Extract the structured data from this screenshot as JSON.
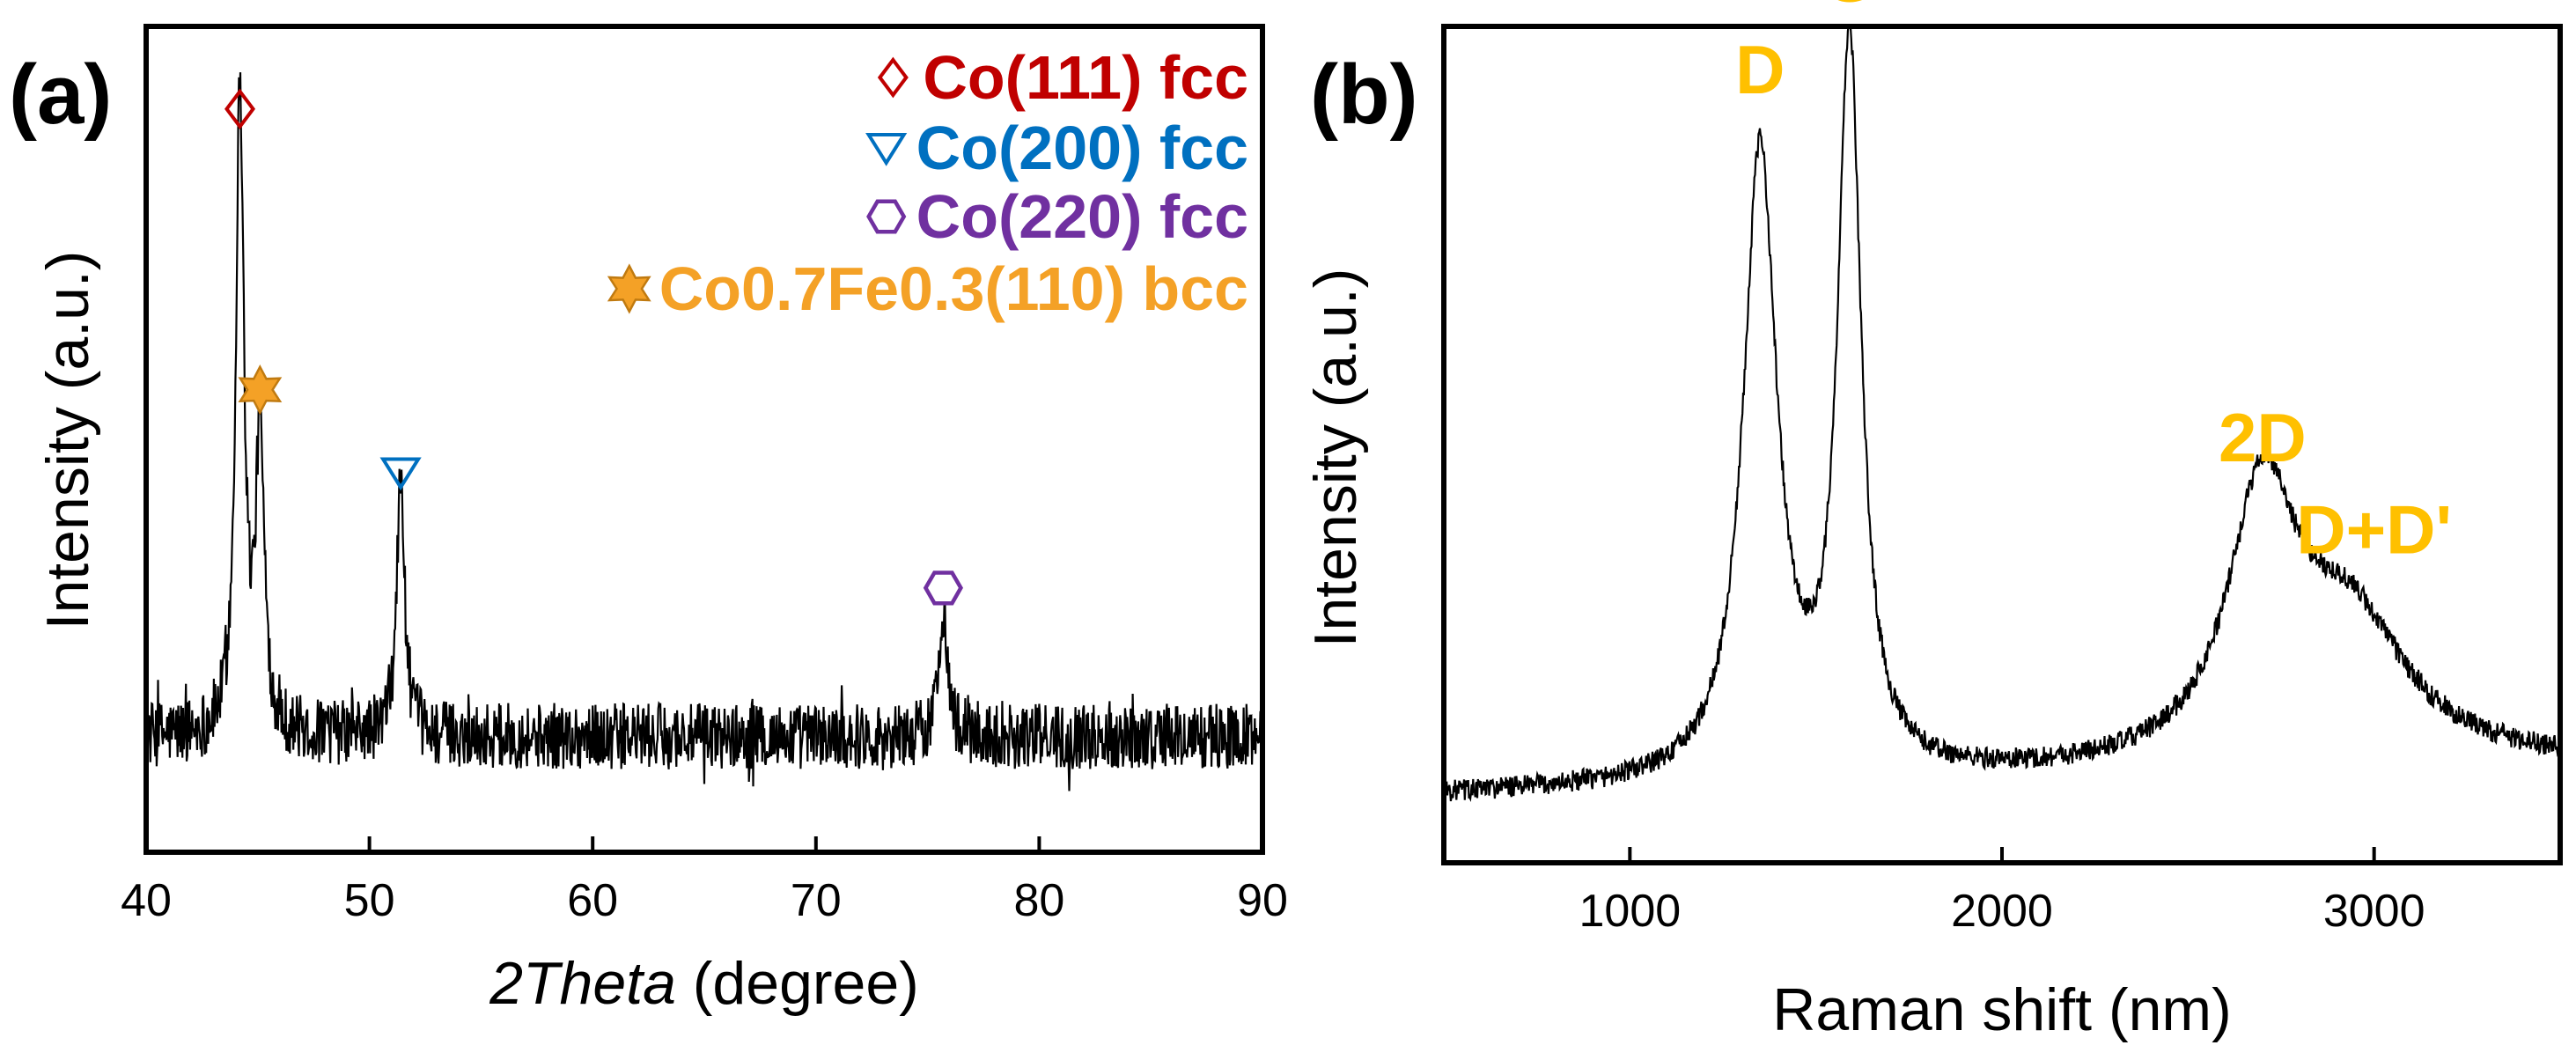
{
  "colors": {
    "co111": "#c00000",
    "co200": "#0070c0",
    "co220": "#7030a0",
    "cofe": "#f4a126",
    "raman_label": "#ffc000",
    "line": "#000000"
  },
  "chart_data": [
    {
      "panel_label": "(a)",
      "type": "line",
      "title": "",
      "xlabel_italic": "2Theta",
      "xlabel_rest": " (degree)",
      "ylabel": "Intensity (a.u.)",
      "xlim": [
        40,
        90
      ],
      "ylim": [
        0,
        100
      ],
      "xticks": [
        40,
        50,
        60,
        70,
        80,
        90
      ],
      "y_ticks_shown": false,
      "baseline": 14,
      "noise_amplitude": 4,
      "peaks": [
        {
          "center": 44.2,
          "height": 78,
          "width": 0.22
        },
        {
          "center": 45.1,
          "height": 36,
          "width": 0.22
        },
        {
          "center": 51.4,
          "height": 31,
          "width": 0.22
        },
        {
          "center": 75.7,
          "height": 16,
          "width": 0.22
        }
      ],
      "legend": [
        {
          "marker": "diamond-icon",
          "text": "Co(111) fcc",
          "color": "#c00000"
        },
        {
          "marker": "triangle-down-icon",
          "text": "Co(200) fcc",
          "color": "#0070c0"
        },
        {
          "marker": "hexagon-icon",
          "text": "Co(220) fcc",
          "color": "#7030a0"
        },
        {
          "marker": "star-icon",
          "text": "Co0.7Fe0.3(110) bcc",
          "color": "#f4a126"
        }
      ],
      "annotations": [
        {
          "marker": "diamond-icon",
          "x": 44.2,
          "y": 90,
          "color": "#c00000"
        },
        {
          "marker": "star-icon",
          "x": 45.1,
          "y": 56,
          "color": "#f4a126"
        },
        {
          "marker": "triangle-down-icon",
          "x": 51.4,
          "y": 46,
          "color": "#0070c0"
        },
        {
          "marker": "hexagon-icon",
          "x": 75.7,
          "y": 32,
          "color": "#7030a0"
        }
      ]
    },
    {
      "panel_label": "(b)",
      "type": "line",
      "title": "",
      "xlabel": "Raman shift (nm)",
      "ylabel": "Intensity (a.u.)",
      "xlim": [
        500,
        3500
      ],
      "ylim": [
        0,
        100
      ],
      "xticks": [
        1000,
        2000,
        3000
      ],
      "y_ticks_shown": false,
      "baseline_start": 8,
      "baseline_slope_per_1000": 1.2,
      "noise_amplitude": 1.3,
      "peaks": [
        {
          "center": 1350,
          "height": 75,
          "width": 55
        },
        {
          "center": 1590,
          "height": 87,
          "width": 38
        },
        {
          "center": 2700,
          "height": 31,
          "width": 110
        },
        {
          "center": 2930,
          "height": 17,
          "width": 190
        }
      ],
      "peak_labels": [
        {
          "text": "D",
          "x": 1350,
          "y": 92
        },
        {
          "text": "G",
          "x": 1590,
          "y": 103
        },
        {
          "text": "2D",
          "x": 2700,
          "y": 48
        },
        {
          "text": "D+D'",
          "x": 3000,
          "y": 37
        }
      ]
    }
  ]
}
